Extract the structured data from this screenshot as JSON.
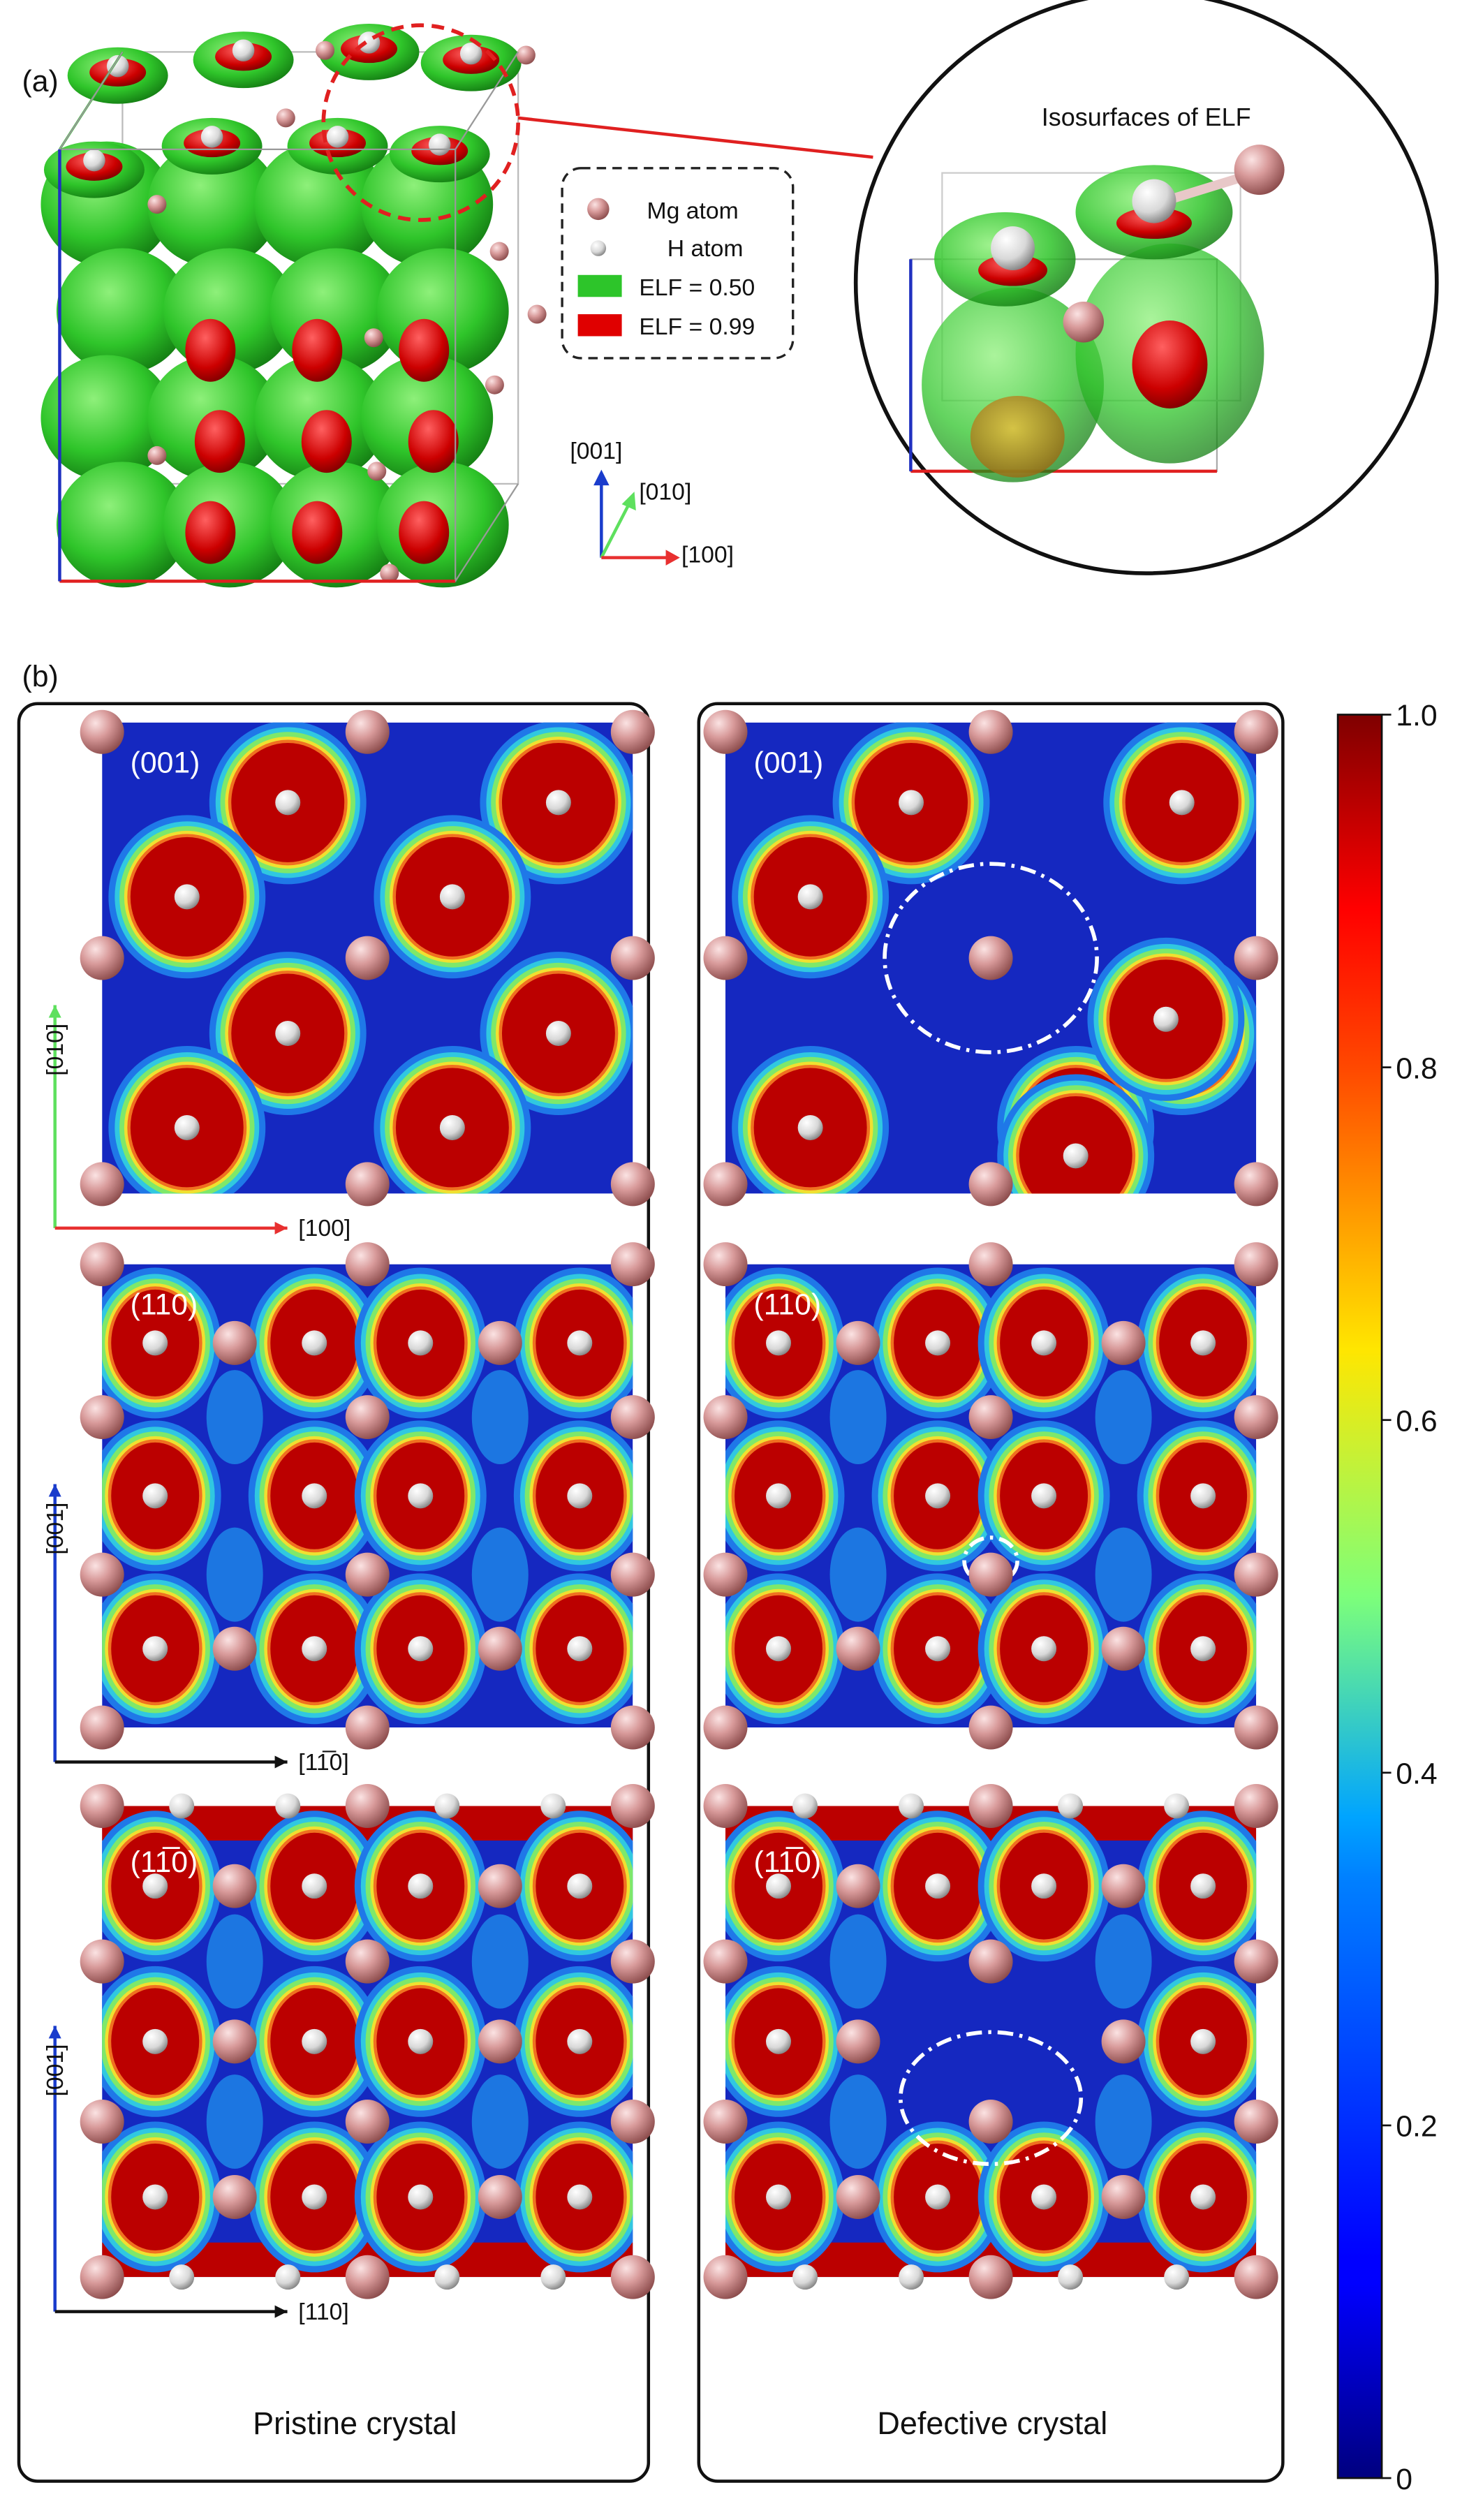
{
  "panel_a": {
    "label": "(a)",
    "legend_items": [
      "Mg atom",
      "H atom",
      "ELF = 0.50",
      "ELF = 0.99"
    ],
    "axes": {
      "z": "[001]",
      "y": "[010]",
      "x": "[100]"
    },
    "inset_title": "Isosurfaces of ELF"
  },
  "panel_b": {
    "label": "(b)",
    "columns": [
      "Pristine crystal",
      "Defective crystal"
    ],
    "rows": [
      {
        "plane": "(001)",
        "vertical_axis": "[010]",
        "horizontal_axis": "[100]"
      },
      {
        "plane": "(110)",
        "vertical_axis": "[001]",
        "horizontal_axis": "[11̅0]"
      },
      {
        "plane": "(11̅0)",
        "vertical_axis": "[001]",
        "horizontal_axis": "[110]"
      }
    ]
  },
  "colorbar": {
    "ylim": [
      0,
      1
    ],
    "ticks": [
      0,
      0.2,
      0.4,
      0.6,
      0.8,
      {
        "value": 1,
        "label": "1.0"
      }
    ]
  }
}
